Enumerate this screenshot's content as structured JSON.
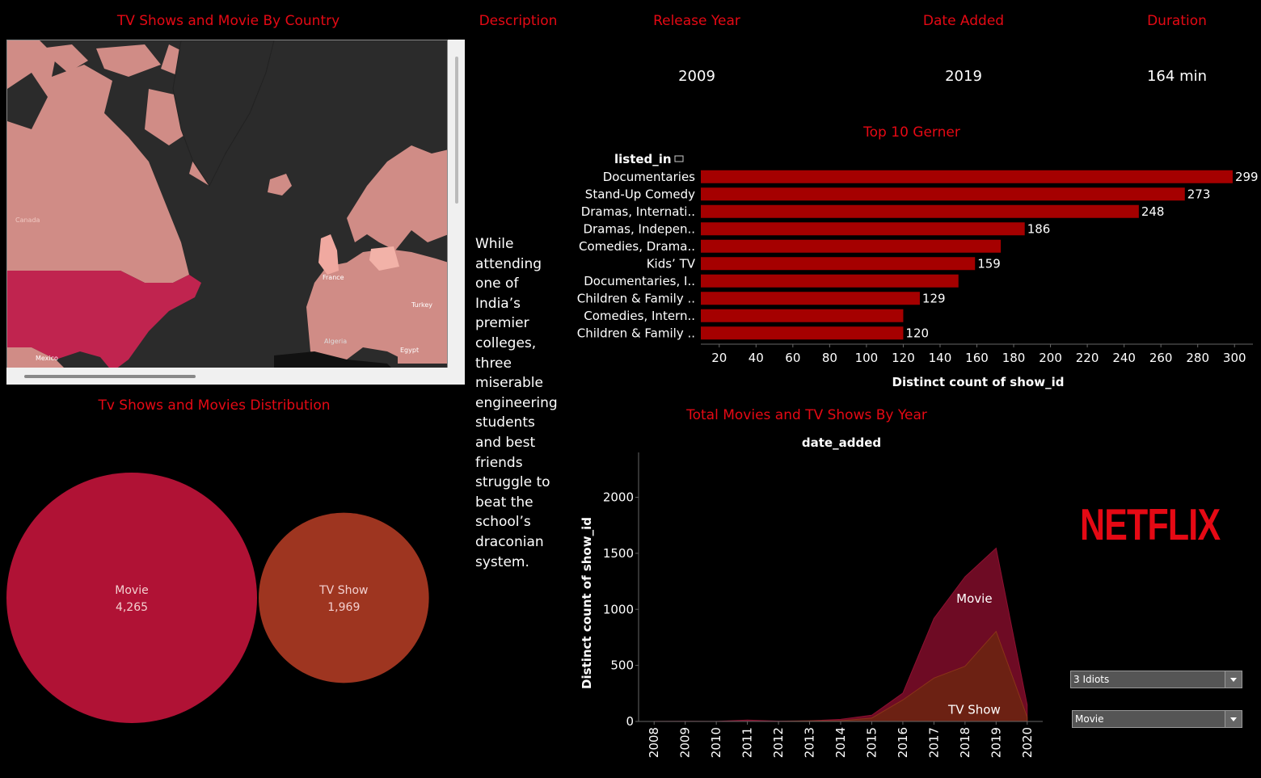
{
  "headers": {
    "map_title": "TV Shows and Movie By  Country",
    "description_title": "Description",
    "release_year_title": "Release Year",
    "date_added_title": "Date Added",
    "duration_title": "Duration",
    "distribution_title": "Tv Shows and Movies Distribution",
    "genre_title": "Top 10 Gerner",
    "year_title": "Total Movies and TV Shows By Year"
  },
  "values": {
    "release_year": "2009",
    "date_added": "2019",
    "duration": "164 min"
  },
  "description": "While attending one of India’s premier colleges, three miserable engineering students and best friends struggle to beat the school’s draconian system.",
  "map_labels": {
    "canada": "Canada",
    "algeria": "Algeria",
    "egypt": "Egypt",
    "france": "France",
    "turkey": "Turkey",
    "mexico": "Mexico"
  },
  "filters": {
    "title_value": "3 Idiots",
    "type_value": "Movie"
  },
  "logo_text": "NETFLIX",
  "colors": {
    "accent": "#e50914",
    "bar": "#a50000",
    "movie_bubble": "#b01235",
    "tvshow_bubble": "#9e3520",
    "movie_area": "#6e0b24",
    "tvshow_area": "#6b2412"
  },
  "chart_data": [
    {
      "type": "bubble",
      "title": "Tv Shows and Movies Distribution",
      "categories": [
        "Movie",
        "TV Show"
      ],
      "values": [
        4265,
        1969
      ],
      "labels": [
        "4,265",
        "1,969"
      ]
    },
    {
      "type": "bar",
      "orientation": "horizontal",
      "title": "Top 10 Gerner",
      "ylabel": "listed_in",
      "xlabel": "Distinct count of show_id",
      "categories": [
        "Documentaries",
        "Stand-Up Comedy",
        "Dramas, Internati..",
        "Dramas, Indepen..",
        "Comedies, Drama..",
        "Kids’ TV",
        "Documentaries, I..",
        "Children & Family ..",
        "Comedies, Intern..",
        "Children & Family .."
      ],
      "values": [
        299,
        273,
        248,
        186,
        173,
        159,
        150,
        129,
        120,
        120
      ],
      "value_labels": [
        "299",
        "273",
        "248",
        "186",
        "",
        "159",
        "",
        "129",
        "",
        "120"
      ],
      "xlim": [
        10,
        310
      ],
      "xticks": [
        "20",
        "40",
        "60",
        "80",
        "100",
        "120",
        "140",
        "160",
        "180",
        "200",
        "220",
        "240",
        "260",
        "280",
        "300"
      ]
    },
    {
      "type": "area",
      "stacked": false,
      "title": "Total Movies and TV Shows By Year",
      "xlabel": "date_added",
      "ylabel": "Distinct count of show_id",
      "x": [
        "2008",
        "2009",
        "2010",
        "2011",
        "2012",
        "2013",
        "2014",
        "2015",
        "2016",
        "2017",
        "2018",
        "2019",
        "2020"
      ],
      "series": [
        {
          "name": "Movie",
          "values": [
            1,
            2,
            1,
            13,
            3,
            6,
            19,
            56,
            253,
            919,
            1290,
            1546,
            147
          ]
        },
        {
          "name": "TV Show",
          "values": [
            0,
            0,
            0,
            0,
            0,
            5,
            6,
            30,
            192,
            387,
            492,
            803,
            37
          ]
        }
      ],
      "ylim": [
        0,
        2400
      ],
      "yticks": [
        "0",
        "500",
        "1000",
        "1500",
        "2000"
      ]
    }
  ]
}
